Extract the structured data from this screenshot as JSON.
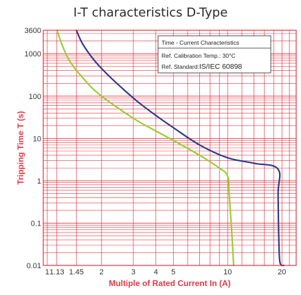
{
  "chart_data": {
    "type": "line",
    "title": "I-T characteristics D-Type",
    "xlabel": "Multiple of Rated Current In (A)",
    "ylabel": "Tripping Time T (s)",
    "x_scale": "log",
    "y_scale": "log",
    "xlim": [
      0.95,
      24
    ],
    "ylim": [
      0.01,
      3600
    ],
    "x_ticks": [
      {
        "value": 1,
        "label": "1"
      },
      {
        "value": 1.13,
        "label": "1.13"
      },
      {
        "value": 1.45,
        "label": "1.45"
      },
      {
        "value": 2,
        "label": "2"
      },
      {
        "value": 3,
        "label": "3"
      },
      {
        "value": 4,
        "label": "4"
      },
      {
        "value": 5,
        "label": "5"
      },
      {
        "value": 10,
        "label": "10"
      },
      {
        "value": 20,
        "label": "20"
      }
    ],
    "y_ticks": [
      {
        "value": 0.01,
        "label": "0.01"
      },
      {
        "value": 0.1,
        "label": "0.1"
      },
      {
        "value": 1,
        "label": "1"
      },
      {
        "value": 10,
        "label": "10"
      },
      {
        "value": 100,
        "label": "100"
      },
      {
        "value": 1000,
        "label": "1000"
      },
      {
        "value": 3600,
        "label": "3600"
      }
    ],
    "grid": true,
    "grid_color": "#e8303e",
    "series": [
      {
        "color": "#9acd32",
        "points": [
          [
            1.13,
            3600
          ],
          [
            1.3,
            800
          ],
          [
            1.6,
            250
          ],
          [
            2,
            100
          ],
          [
            3,
            30
          ],
          [
            4,
            15
          ],
          [
            5,
            9
          ],
          [
            7,
            4
          ],
          [
            9,
            2
          ],
          [
            10,
            1.3
          ],
          [
            10.2,
            0.5
          ],
          [
            10.5,
            0.08
          ],
          [
            10.8,
            0.01
          ]
        ]
      },
      {
        "color": "#2e3a8c",
        "points": [
          [
            1.45,
            3600
          ],
          [
            1.6,
            1500
          ],
          [
            2,
            450
          ],
          [
            3,
            90
          ],
          [
            4,
            35
          ],
          [
            5,
            18
          ],
          [
            7,
            7
          ],
          [
            10,
            3.5
          ],
          [
            14,
            2.6
          ],
          [
            19,
            1.9
          ],
          [
            19.05,
            0.5
          ],
          [
            19.2,
            0.05
          ],
          [
            19.5,
            0.012
          ],
          [
            20.5,
            0.01
          ]
        ]
      }
    ],
    "legend": {
      "placement": "top-right",
      "line1": "Time - Current Characteristics",
      "line2": "Ref. Calibration Temp.: 30°C",
      "line3_label": "Ref. Standard:",
      "line3_value": "IS/IEC 60898"
    }
  }
}
